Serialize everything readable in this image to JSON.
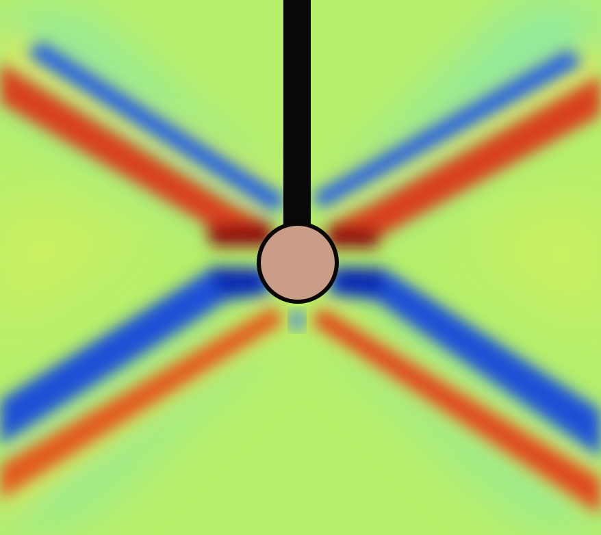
{
  "figure": {
    "kind": "wave-field-colormap",
    "colormap": "jet",
    "colors": {
      "background": "#b8ef6a",
      "deep_red": "#8f0f07",
      "red": "#d8401a",
      "orange": "#f08a28",
      "yellow": "#f4e84a",
      "cyan": "#52e6d8",
      "blue": "#1c4fd6",
      "deep_blue": "#0a2ab0",
      "rod": "#0a0707",
      "sphere_fill": "#c99d87",
      "sphere_outline": "#0a0707"
    }
  }
}
